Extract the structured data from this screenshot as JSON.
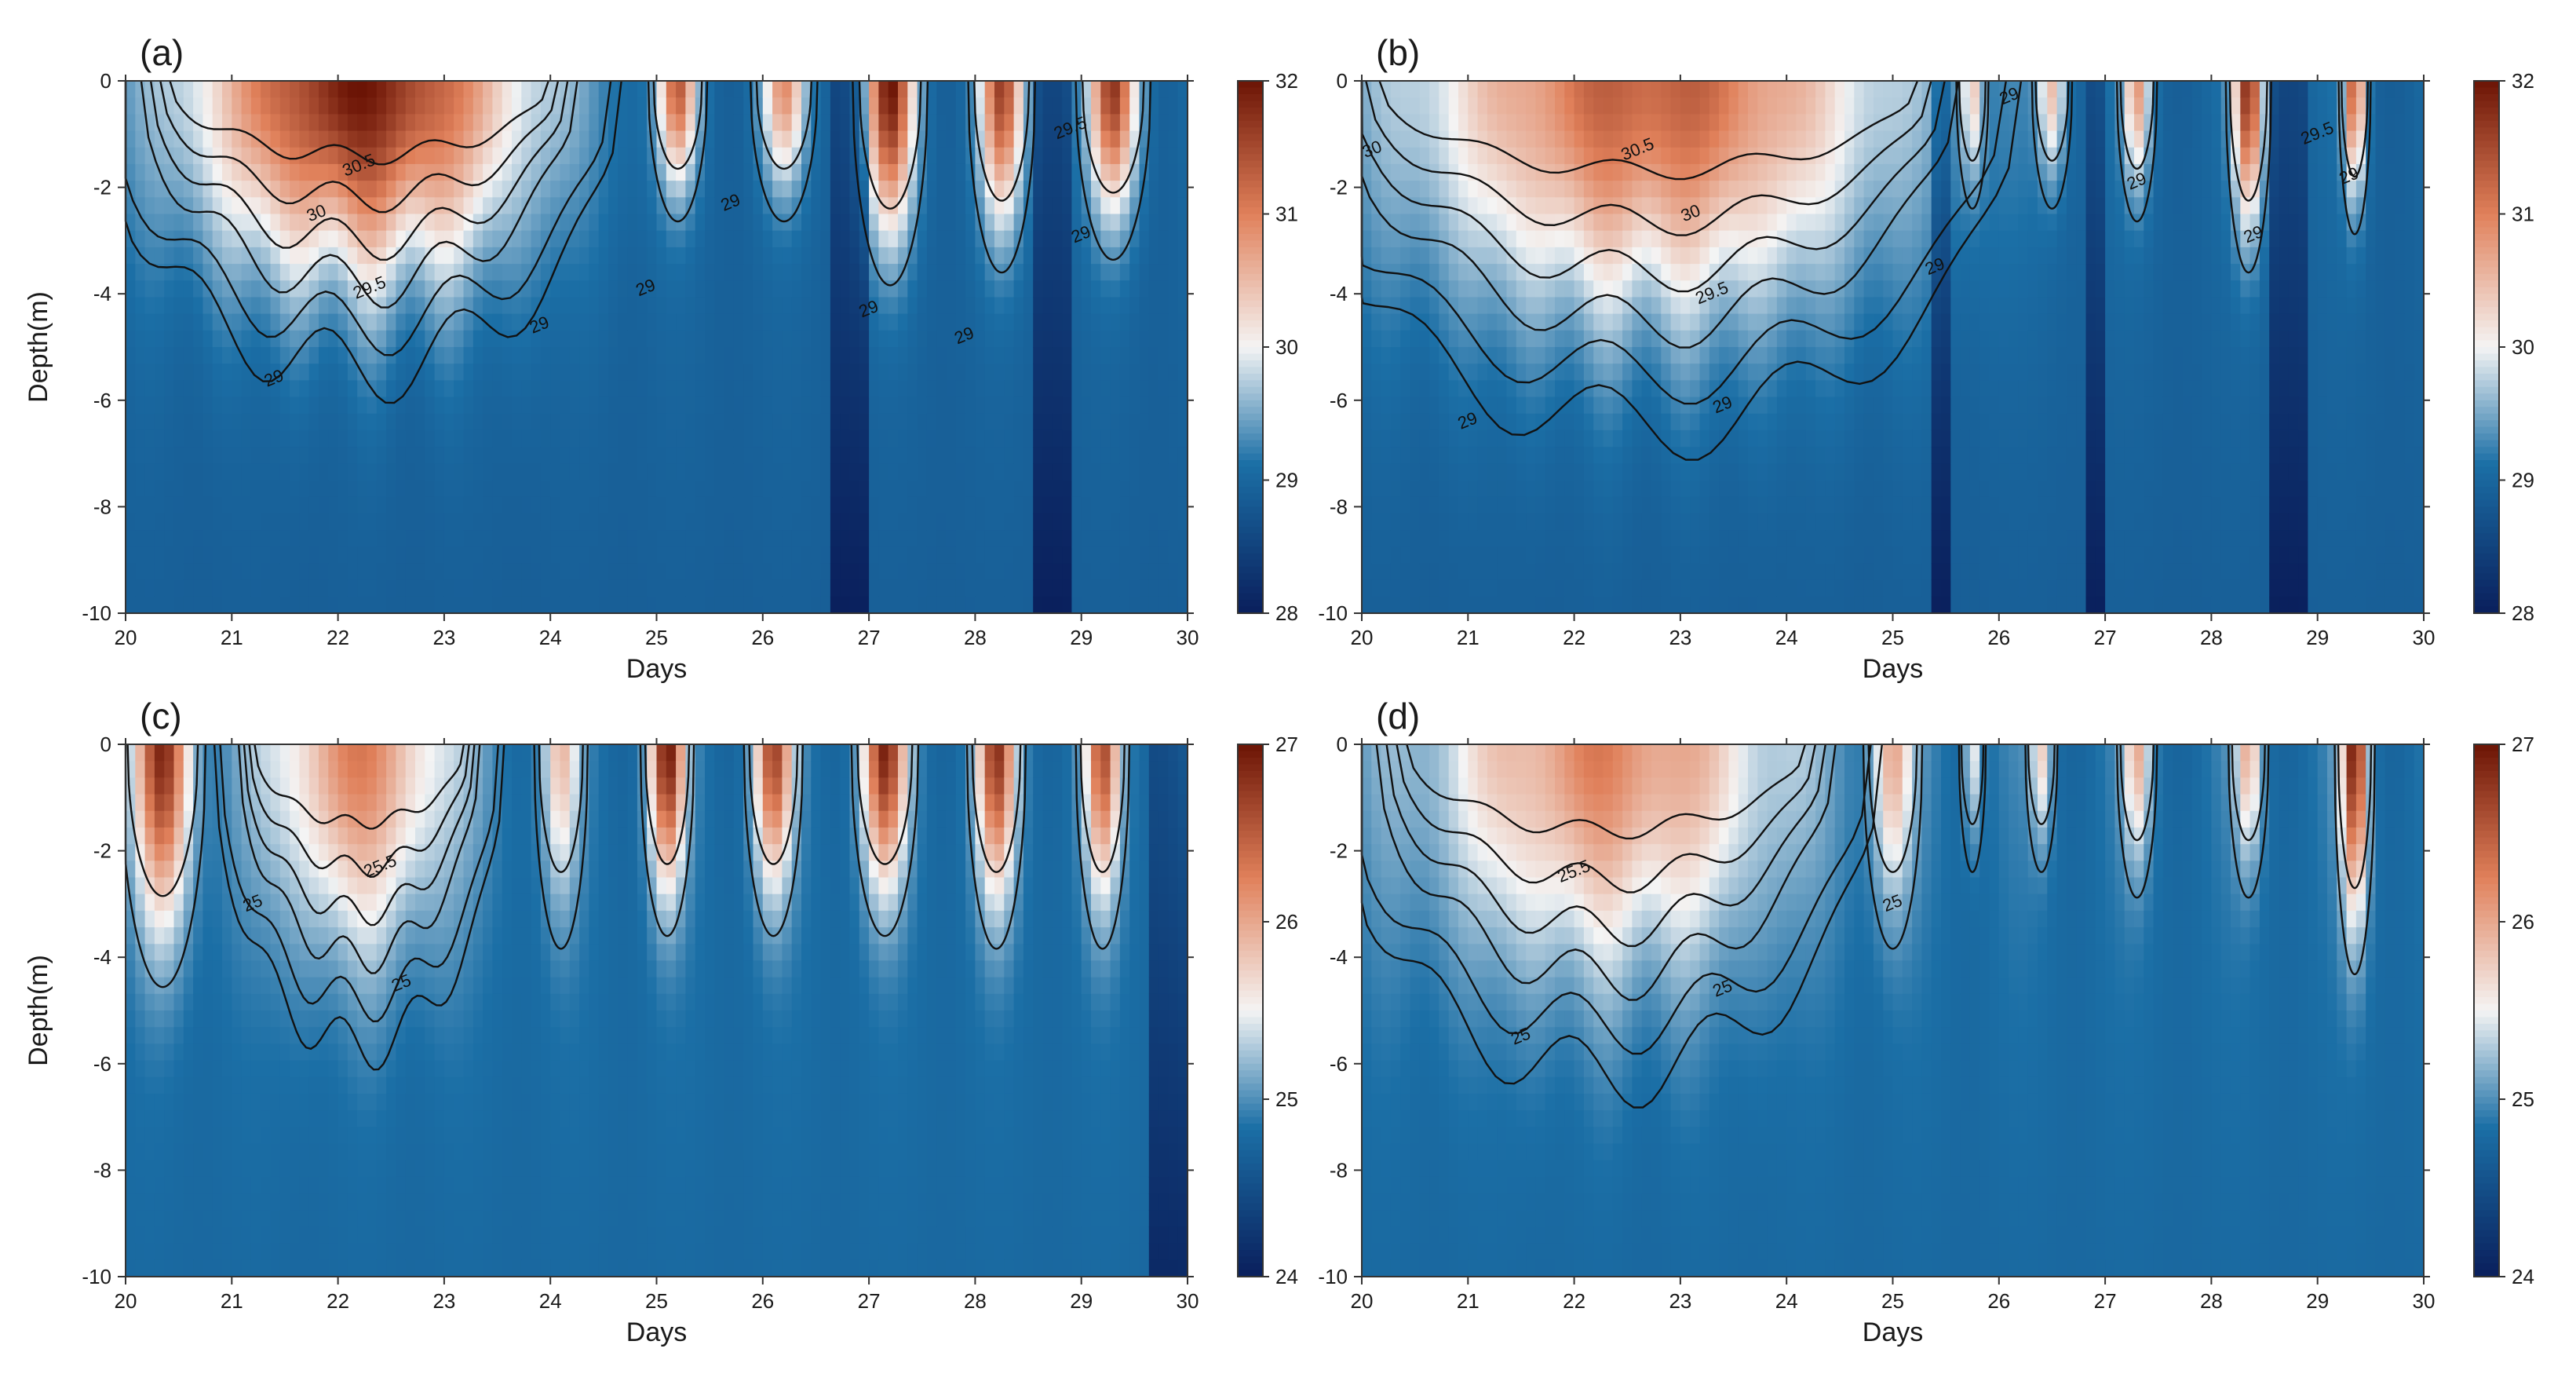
{
  "colors": {
    "cold": "#0a1f5c",
    "mid_blue": "#1b6fa6",
    "light": "#f4f4f4",
    "warm": "#e0805a",
    "hot": "#6b1405",
    "contour": "#111111"
  },
  "chart_data": [
    {
      "type": "heatmap",
      "panel_label": "(a)",
      "xlabel": "Days",
      "ylabel": "Depth(m)",
      "xlim": [
        20,
        30
      ],
      "ylim": [
        -10,
        0
      ],
      "xticks": [
        "20",
        "21",
        "22",
        "23",
        "24",
        "25",
        "26",
        "27",
        "28",
        "29",
        "30"
      ],
      "yticks": [
        "0",
        "-2",
        "-4",
        "-6",
        "-8",
        "-10"
      ],
      "colorbar": {
        "min": 28,
        "max": 32,
        "ticks": [
          "32",
          "31",
          "30",
          "29",
          "28"
        ]
      },
      "background_value": 29.0,
      "plumes": [
        {
          "center": 22.2,
          "width": 1.9,
          "peak": 31.9,
          "depth": 4.0,
          "ripple": 0.6
        },
        {
          "center": 25.2,
          "width": 0.22,
          "peak": 31.2,
          "depth": 2.2,
          "ripple": 0
        },
        {
          "center": 26.2,
          "width": 0.25,
          "peak": 30.8,
          "depth": 2.2,
          "ripple": 0
        },
        {
          "center": 27.2,
          "width": 0.28,
          "peak": 31.9,
          "depth": 3.2,
          "ripple": 0
        },
        {
          "center": 28.25,
          "width": 0.25,
          "peak": 31.5,
          "depth": 3.0,
          "ripple": 0
        },
        {
          "center": 29.3,
          "width": 0.28,
          "peak": 31.6,
          "depth": 2.8,
          "ripple": 0
        }
      ],
      "dark_bands": [
        [
          26.6,
          27.0
        ],
        [
          28.55,
          28.9
        ]
      ],
      "contour_labels": [
        {
          "text": "30.5",
          "x": 22.2,
          "y": -1.6
        },
        {
          "text": "30",
          "x": 21.8,
          "y": -2.5
        },
        {
          "text": "29.5",
          "x": 22.3,
          "y": -3.9
        },
        {
          "text": "29",
          "x": 21.4,
          "y": -5.6
        },
        {
          "text": "29",
          "x": 24.9,
          "y": -3.9
        },
        {
          "text": "29",
          "x": 25.7,
          "y": -2.3
        },
        {
          "text": "29",
          "x": 27.0,
          "y": -4.3
        },
        {
          "text": "29",
          "x": 27.9,
          "y": -4.8
        },
        {
          "text": "29",
          "x": 29.0,
          "y": -2.9
        },
        {
          "text": "29",
          "x": 23.9,
          "y": -4.6
        },
        {
          "text": "29.5",
          "x": 28.9,
          "y": -0.9
        }
      ]
    },
    {
      "type": "heatmap",
      "panel_label": "(b)",
      "xlabel": "Days",
      "ylabel": "",
      "xlim": [
        20,
        30
      ],
      "ylim": [
        -10,
        0
      ],
      "xticks": [
        "20",
        "21",
        "22",
        "23",
        "24",
        "25",
        "26",
        "27",
        "28",
        "29",
        "30"
      ],
      "yticks": [
        "0",
        "-2",
        "-4",
        "-6",
        "-8",
        "-10"
      ],
      "colorbar": {
        "min": 28,
        "max": 32,
        "ticks": [
          "32",
          "31",
          "30",
          "29",
          "28"
        ]
      },
      "background_value": 29.0,
      "plumes": [
        {
          "center": 22.7,
          "width": 2.7,
          "peak": 31.3,
          "depth": 4.8,
          "ripple": 0.5
        },
        {
          "center": 25.75,
          "width": 0.12,
          "peak": 30.2,
          "depth": 2.0,
          "ripple": 0
        },
        {
          "center": 26.5,
          "width": 0.15,
          "peak": 30.4,
          "depth": 2.0,
          "ripple": 0
        },
        {
          "center": 27.3,
          "width": 0.15,
          "peak": 30.7,
          "depth": 2.2,
          "ripple": 0
        },
        {
          "center": 28.35,
          "width": 0.17,
          "peak": 31.7,
          "depth": 3.0,
          "ripple": 0
        },
        {
          "center": 29.35,
          "width": 0.12,
          "peak": 31.3,
          "depth": 2.4,
          "ripple": 0
        }
      ],
      "dark_bands": [
        [
          25.4,
          25.55
        ],
        [
          26.8,
          27.0
        ],
        [
          28.55,
          28.95
        ]
      ],
      "contour_labels": [
        {
          "text": "30.5",
          "x": 22.6,
          "y": -1.3
        },
        {
          "text": "30",
          "x": 20.1,
          "y": -1.3
        },
        {
          "text": "30",
          "x": 23.1,
          "y": -2.5
        },
        {
          "text": "29.5",
          "x": 23.3,
          "y": -4.0
        },
        {
          "text": "29",
          "x": 23.4,
          "y": -6.1
        },
        {
          "text": "29",
          "x": 21.0,
          "y": -6.4
        },
        {
          "text": "29",
          "x": 25.4,
          "y": -3.5
        },
        {
          "text": "29",
          "x": 26.1,
          "y": -0.3
        },
        {
          "text": "29",
          "x": 27.3,
          "y": -1.9
        },
        {
          "text": "29",
          "x": 28.4,
          "y": -2.9
        },
        {
          "text": "29.5",
          "x": 29.0,
          "y": -1.0
        },
        {
          "text": "29",
          "x": 29.3,
          "y": -1.8
        }
      ]
    },
    {
      "type": "heatmap",
      "panel_label": "(c)",
      "xlabel": "Days",
      "ylabel": "Depth(m)",
      "xlim": [
        20,
        30
      ],
      "ylim": [
        -10,
        0
      ],
      "xticks": [
        "20",
        "21",
        "22",
        "23",
        "24",
        "25",
        "26",
        "27",
        "28",
        "29",
        "30"
      ],
      "yticks": [
        "0",
        "-2",
        "-4",
        "-6",
        "-8",
        "-10"
      ],
      "colorbar": {
        "min": 24,
        "max": 27,
        "ticks": [
          "27",
          "26",
          "25",
          "24"
        ]
      },
      "background_value": 24.85,
      "plumes": [
        {
          "center": 20.35,
          "width": 0.32,
          "peak": 26.8,
          "depth": 3.8,
          "ripple": 0
        },
        {
          "center": 22.2,
          "width": 1.05,
          "peak": 26.2,
          "depth": 4.2,
          "ripple": 0.4
        },
        {
          "center": 24.1,
          "width": 0.2,
          "peak": 25.8,
          "depth": 3.2,
          "ripple": 0
        },
        {
          "center": 25.1,
          "width": 0.2,
          "peak": 26.9,
          "depth": 3.0,
          "ripple": 0
        },
        {
          "center": 26.1,
          "width": 0.22,
          "peak": 26.6,
          "depth": 3.0,
          "ripple": 0
        },
        {
          "center": 27.15,
          "width": 0.25,
          "peak": 26.8,
          "depth": 3.0,
          "ripple": 0
        },
        {
          "center": 28.2,
          "width": 0.22,
          "peak": 26.7,
          "depth": 3.2,
          "ripple": 0
        },
        {
          "center": 29.2,
          "width": 0.2,
          "peak": 26.5,
          "depth": 3.2,
          "ripple": 0
        }
      ],
      "dark_bands": [
        [
          29.6,
          30.0
        ]
      ],
      "contour_labels": [
        {
          "text": "25.5",
          "x": 22.4,
          "y": -2.3
        },
        {
          "text": "25",
          "x": 21.2,
          "y": -3.0
        },
        {
          "text": "25",
          "x": 22.6,
          "y": -4.5
        }
      ]
    },
    {
      "type": "heatmap",
      "panel_label": "(d)",
      "xlabel": "Days",
      "ylabel": "",
      "xlim": [
        20,
        30
      ],
      "ylim": [
        -10,
        0
      ],
      "xticks": [
        "20",
        "21",
        "22",
        "23",
        "24",
        "25",
        "26",
        "27",
        "28",
        "29",
        "30"
      ],
      "yticks": [
        "0",
        "-2",
        "-4",
        "-6",
        "-8",
        "-10"
      ],
      "colorbar": {
        "min": 24,
        "max": 27,
        "ticks": [
          "27",
          "26",
          "25",
          "24"
        ]
      },
      "background_value": 24.85,
      "plumes": [
        {
          "center": 22.3,
          "width": 2.0,
          "peak": 26.2,
          "depth": 4.6,
          "ripple": 0.5
        },
        {
          "center": 25.0,
          "width": 0.22,
          "peak": 25.9,
          "depth": 3.2,
          "ripple": 0
        },
        {
          "center": 25.75,
          "width": 0.1,
          "peak": 25.6,
          "depth": 2.0,
          "ripple": 0
        },
        {
          "center": 26.4,
          "width": 0.12,
          "peak": 25.7,
          "depth": 2.0,
          "ripple": 0
        },
        {
          "center": 27.3,
          "width": 0.15,
          "peak": 25.9,
          "depth": 2.4,
          "ripple": 0
        },
        {
          "center": 28.35,
          "width": 0.15,
          "peak": 25.9,
          "depth": 2.4,
          "ripple": 0
        },
        {
          "center": 29.35,
          "width": 0.15,
          "peak": 26.9,
          "depth": 3.6,
          "ripple": 0
        }
      ],
      "dark_bands": [],
      "contour_labels": [
        {
          "text": "25.5",
          "x": 22.0,
          "y": -2.4
        },
        {
          "text": "25",
          "x": 21.5,
          "y": -5.5
        },
        {
          "text": "25",
          "x": 23.4,
          "y": -4.6
        },
        {
          "text": "25",
          "x": 25.0,
          "y": -3.0
        }
      ]
    }
  ]
}
